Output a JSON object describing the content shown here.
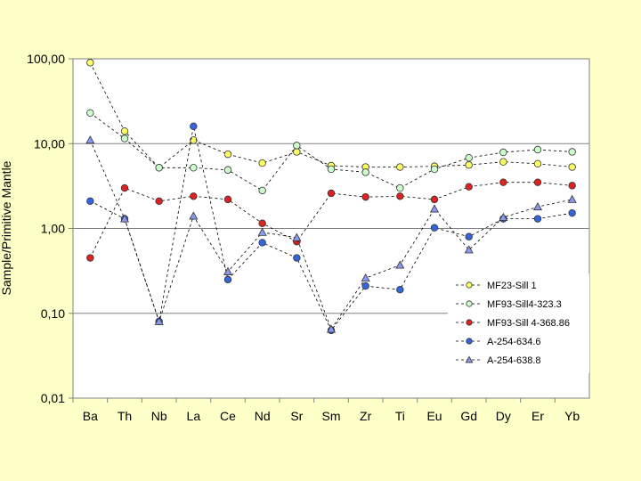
{
  "chart_data": {
    "type": "line",
    "title": "",
    "xlabel": "",
    "ylabel": "Sample/Primitive Mantle",
    "yscale": "log",
    "ylim": [
      0.01,
      100
    ],
    "ytick_values": [
      0.01,
      0.1,
      1,
      10,
      100
    ],
    "ytick_labels": [
      "0,01",
      "0,10",
      "1,00",
      "10,00",
      "100,00"
    ],
    "grid": "horizontal",
    "legend_position": "bottom-right",
    "categories": [
      "Ba",
      "Th",
      "Nb",
      "La",
      "Ce",
      "Nd",
      "Sr",
      "Sm",
      "Zr",
      "Ti",
      "Eu",
      "Gd",
      "Dy",
      "Er",
      "Yb"
    ],
    "series": [
      {
        "name": "MF23-Sill 1",
        "color": "#ffff66",
        "marker": "circle",
        "line": "dashed",
        "values": [
          90,
          14,
          5.2,
          11,
          7.5,
          5.9,
          8,
          5.5,
          5.3,
          5.3,
          5.4,
          5.6,
          6.1,
          5.8,
          5.3
        ]
      },
      {
        "name": "MF93-Sill4-323.3",
        "color": "#ccffcc",
        "marker": "circle",
        "line": "dashed",
        "values": [
          23,
          11.5,
          5.2,
          5.2,
          4.9,
          2.8,
          9.5,
          5,
          4.6,
          3,
          5,
          6.8,
          7.9,
          8.5,
          8
        ]
      },
      {
        "name": "MF93-Sill 4-368.86",
        "color": "#dd2222",
        "marker": "circle",
        "line": "dashed",
        "values": [
          0.45,
          3,
          2.1,
          2.4,
          2.2,
          1.15,
          0.7,
          2.6,
          2.35,
          2.4,
          2.2,
          3.1,
          3.5,
          3.5,
          3.2
        ]
      },
      {
        "name": "A-254-634.6",
        "color": "#3366dd",
        "marker": "circle",
        "line": "dashed",
        "values": [
          2.1,
          1.3,
          0.08,
          16,
          0.25,
          0.68,
          0.45,
          0.063,
          0.21,
          0.19,
          1.02,
          0.8,
          1.3,
          1.3,
          1.52
        ]
      },
      {
        "name": "A-254-638.8",
        "color": "#8899ee",
        "marker": "triangle",
        "line": "dashed",
        "values": [
          11,
          1.3,
          0.08,
          1.4,
          0.31,
          0.9,
          0.78,
          0.065,
          0.26,
          0.37,
          1.7,
          0.56,
          1.35,
          1.8,
          2.2
        ]
      }
    ]
  }
}
